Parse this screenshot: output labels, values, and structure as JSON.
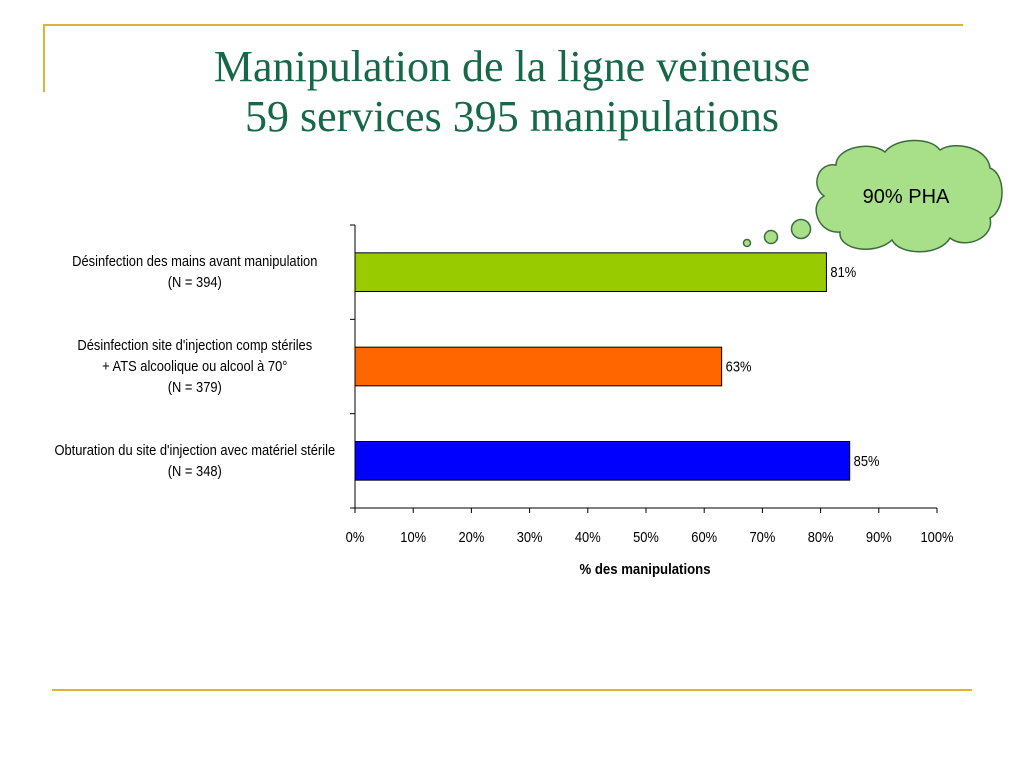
{
  "title": {
    "line1": "Manipulation de la ligne veineuse",
    "line2": "59 services 395 manipulations"
  },
  "callout": {
    "text": "90% PHA",
    "fill": "#a8e08a",
    "stroke": "#3d6b3d"
  },
  "chart_data": {
    "type": "bar",
    "orientation": "horizontal",
    "categories": [
      [
        "Désinfection des mains avant manipulation",
        "(N = 394)"
      ],
      [
        "Désinfection  site d'injection  comp stériles",
        "+ ATS alcoolique ou alcool à 70°",
        "(N = 379)"
      ],
      [
        "Obturation du site d'injection avec matériel stérile",
        "(N = 348)"
      ]
    ],
    "values": [
      81,
      63,
      85
    ],
    "value_labels": [
      "81%",
      "63%",
      "85%"
    ],
    "colors": [
      "#99cc00",
      "#ff6600",
      "#0000ff"
    ],
    "xlabel": "% des manipulations",
    "xlim": [
      0,
      100
    ],
    "xticks": [
      "0%",
      "10%",
      "20%",
      "30%",
      "40%",
      "50%",
      "60%",
      "70%",
      "80%",
      "90%",
      "100%"
    ],
    "grid": false,
    "legend": "none"
  }
}
